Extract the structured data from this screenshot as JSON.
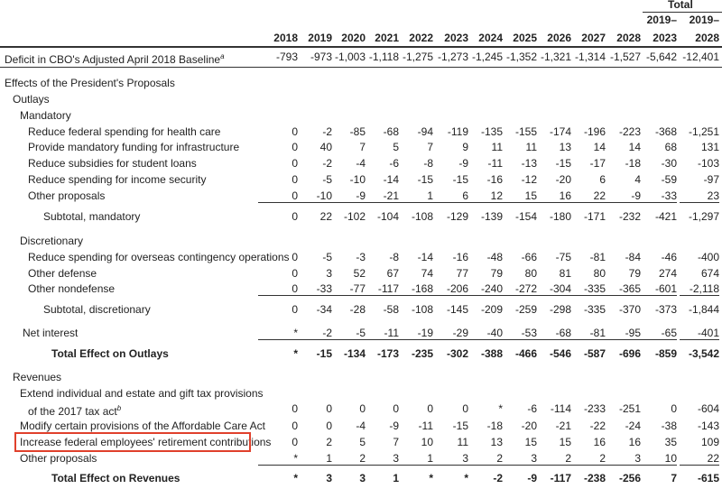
{
  "header": {
    "total_label": "Total",
    "years": [
      "2018",
      "2019",
      "2020",
      "2021",
      "2022",
      "2023",
      "2024",
      "2025",
      "2026",
      "2027",
      "2028"
    ],
    "total_columns": [
      [
        "2019–",
        "2023"
      ],
      [
        "2019–",
        "2028"
      ]
    ]
  },
  "table": {
    "rows": [
      {
        "label": "Deficit in CBO's Adjusted April 2018 Baseline",
        "note": "a",
        "values": [
          "-793",
          "-973",
          "-1,003",
          "-1,118",
          "-1,275",
          "-1,273",
          "-1,245",
          "-1,352",
          "-1,321",
          "-1,314",
          "-1,527",
          "-5,642",
          "-12,401"
        ]
      },
      {
        "label": "Effects of the President's Proposals"
      },
      {
        "label": "Outlays"
      },
      {
        "label": "Mandatory"
      },
      {
        "label": "Reduce federal spending for health care",
        "values": [
          "0",
          "-2",
          "-85",
          "-68",
          "-94",
          "-119",
          "-135",
          "-155",
          "-174",
          "-196",
          "-223",
          "-368",
          "-1,251"
        ]
      },
      {
        "label": "Provide mandatory funding for infrastructure",
        "values": [
          "0",
          "40",
          "7",
          "5",
          "7",
          "9",
          "11",
          "11",
          "13",
          "14",
          "14",
          "68",
          "131"
        ]
      },
      {
        "label": "Reduce subsidies for student loans",
        "values": [
          "0",
          "-2",
          "-4",
          "-6",
          "-8",
          "-9",
          "-11",
          "-13",
          "-15",
          "-17",
          "-18",
          "-30",
          "-103"
        ]
      },
      {
        "label": "Reduce spending for income security",
        "values": [
          "0",
          "-5",
          "-10",
          "-14",
          "-15",
          "-15",
          "-16",
          "-12",
          "-20",
          "6",
          "4",
          "-59",
          "-97"
        ]
      },
      {
        "label": "Other proposals",
        "values": [
          "0",
          "-10",
          "-9",
          "-21",
          "1",
          "6",
          "12",
          "15",
          "16",
          "22",
          "-9",
          "-33",
          "23"
        ]
      },
      {
        "label": "Subtotal, mandatory",
        "values": [
          "0",
          "22",
          "-102",
          "-104",
          "-108",
          "-129",
          "-139",
          "-154",
          "-180",
          "-171",
          "-232",
          "-421",
          "-1,297"
        ]
      },
      {
        "label": "Discretionary"
      },
      {
        "label": "Reduce spending for overseas contingency operations",
        "values": [
          "0",
          "-5",
          "-3",
          "-8",
          "-14",
          "-16",
          "-48",
          "-66",
          "-75",
          "-81",
          "-84",
          "-46",
          "-400"
        ]
      },
      {
        "label": "Other defense",
        "values": [
          "0",
          "3",
          "52",
          "67",
          "74",
          "77",
          "79",
          "80",
          "81",
          "80",
          "79",
          "274",
          "674"
        ]
      },
      {
        "label": "Other nondefense",
        "values": [
          "0",
          "-33",
          "-77",
          "-117",
          "-168",
          "-206",
          "-240",
          "-272",
          "-304",
          "-335",
          "-365",
          "-601",
          "-2,118"
        ]
      },
      {
        "label": "Subtotal, discretionary",
        "values": [
          "0",
          "-34",
          "-28",
          "-58",
          "-108",
          "-145",
          "-209",
          "-259",
          "-298",
          "-335",
          "-370",
          "-373",
          "-1,844"
        ]
      },
      {
        "label": "Net interest",
        "values": [
          "*",
          "-2",
          "-5",
          "-11",
          "-19",
          "-29",
          "-40",
          "-53",
          "-68",
          "-81",
          "-95",
          "-65",
          "-401"
        ]
      },
      {
        "label": "Total Effect on Outlays",
        "values": [
          "*",
          "-15",
          "-134",
          "-173",
          "-235",
          "-302",
          "-388",
          "-466",
          "-546",
          "-587",
          "-696",
          "-859",
          "-3,542"
        ]
      },
      {
        "label": "Revenues"
      },
      {
        "label": "Extend individual and estate and gift tax provisions",
        "label_2": "of the 2017 tax act",
        "note": "b",
        "values": [
          "0",
          "0",
          "0",
          "0",
          "0",
          "0",
          "*",
          "-6",
          "-114",
          "-233",
          "-251",
          "0",
          "-604"
        ]
      },
      {
        "label": "Modify certain provisions of the Affordable Care Act",
        "values": [
          "0",
          "0",
          "-4",
          "-9",
          "-11",
          "-15",
          "-18",
          "-20",
          "-21",
          "-22",
          "-24",
          "-38",
          "-143"
        ]
      },
      {
        "label": "Increase federal employees' retirement contributions",
        "values": [
          "0",
          "2",
          "5",
          "7",
          "10",
          "11",
          "13",
          "15",
          "15",
          "16",
          "16",
          "35",
          "109"
        ]
      },
      {
        "label": "Other proposals",
        "values": [
          "*",
          "1",
          "2",
          "3",
          "1",
          "3",
          "2",
          "3",
          "2",
          "2",
          "3",
          "10",
          "22"
        ]
      },
      {
        "label": "Total Effect on Revenues",
        "values": [
          "*",
          "3",
          "3",
          "1",
          "*",
          "*",
          "-2",
          "-9",
          "-117",
          "-238",
          "-256",
          "7",
          "-615"
        ]
      }
    ]
  }
}
